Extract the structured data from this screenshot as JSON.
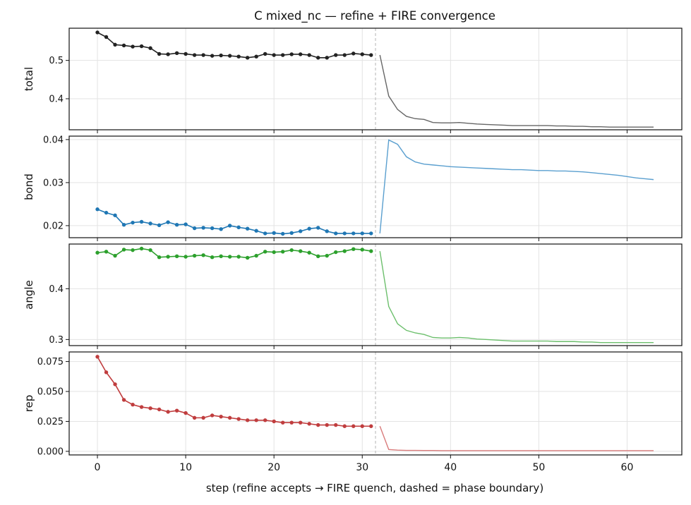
{
  "chart_data": {
    "type": "line",
    "title": "C mixed_nc — refine + FIRE convergence",
    "xlabel": "step  (refine accepts → FIRE quench, dashed = phase boundary)",
    "xlim": [
      -3.2,
      66.2
    ],
    "x_ticks": [
      0,
      10,
      20,
      30,
      40,
      50,
      60
    ],
    "phase_boundary_x": 31.5,
    "grid": true,
    "panels": [
      {
        "ylabel": "total",
        "ylim": [
          0.319,
          0.584
        ],
        "y_ticks": [
          0.4,
          0.5
        ],
        "y_tick_labels": [
          "0.4",
          "0.5"
        ],
        "refine_color": "#222222",
        "fire_color": "#666666",
        "refine": [
          0.573,
          0.561,
          0.541,
          0.539,
          0.536,
          0.537,
          0.532,
          0.517,
          0.516,
          0.519,
          0.517,
          0.514,
          0.514,
          0.512,
          0.513,
          0.512,
          0.51,
          0.507,
          0.51,
          0.517,
          0.514,
          0.514,
          0.516,
          0.516,
          0.514,
          0.507,
          0.507,
          0.514,
          0.514,
          0.518,
          0.516,
          0.514
        ],
        "fire": [
          0.514,
          0.407,
          0.372,
          0.354,
          0.348,
          0.346,
          0.338,
          0.337,
          0.337,
          0.338,
          0.336,
          0.334,
          0.333,
          0.332,
          0.331,
          0.33,
          0.33,
          0.33,
          0.33,
          0.33,
          0.329,
          0.329,
          0.328,
          0.328,
          0.327,
          0.327,
          0.326,
          0.326,
          0.326,
          0.326,
          0.326,
          0.326
        ]
      },
      {
        "ylabel": "bond",
        "ylim": [
          0.0172,
          0.0408
        ],
        "y_ticks": [
          0.02,
          0.03,
          0.04
        ],
        "y_tick_labels": [
          "0.02",
          "0.03",
          "0.04"
        ],
        "refine_color": "#1f77b4",
        "fire_color": "#5a9fcf",
        "refine": [
          0.0238,
          0.023,
          0.0224,
          0.0202,
          0.0207,
          0.0209,
          0.0205,
          0.0201,
          0.0208,
          0.0202,
          0.0203,
          0.0194,
          0.0195,
          0.0194,
          0.0192,
          0.02,
          0.0196,
          0.0193,
          0.0188,
          0.0182,
          0.0183,
          0.0181,
          0.0183,
          0.0187,
          0.0193,
          0.0195,
          0.0187,
          0.0182,
          0.0182,
          0.0182,
          0.0182,
          0.0182
        ],
        "fire": [
          0.0182,
          0.0399,
          0.0389,
          0.036,
          0.0348,
          0.0343,
          0.0341,
          0.0339,
          0.0337,
          0.0336,
          0.0335,
          0.0334,
          0.0333,
          0.0332,
          0.0331,
          0.033,
          0.033,
          0.0329,
          0.0328,
          0.0328,
          0.0327,
          0.0327,
          0.0326,
          0.0325,
          0.0323,
          0.0321,
          0.0319,
          0.0317,
          0.0314,
          0.0311,
          0.0309,
          0.0307
        ]
      },
      {
        "ylabel": "angle",
        "ylim": [
          0.288,
          0.488
        ],
        "y_ticks": [
          0.3,
          0.4
        ],
        "y_tick_labels": [
          "0.3",
          "0.4"
        ],
        "refine_color": "#2ca02c",
        "fire_color": "#6cbf6c",
        "refine": [
          0.471,
          0.473,
          0.465,
          0.477,
          0.476,
          0.479,
          0.476,
          0.462,
          0.463,
          0.464,
          0.463,
          0.465,
          0.466,
          0.462,
          0.464,
          0.463,
          0.463,
          0.461,
          0.465,
          0.473,
          0.472,
          0.473,
          0.476,
          0.474,
          0.471,
          0.464,
          0.465,
          0.472,
          0.474,
          0.478,
          0.477,
          0.474
        ],
        "fire": [
          0.474,
          0.365,
          0.331,
          0.318,
          0.313,
          0.31,
          0.304,
          0.303,
          0.303,
          0.304,
          0.303,
          0.301,
          0.3,
          0.299,
          0.298,
          0.297,
          0.297,
          0.297,
          0.297,
          0.297,
          0.296,
          0.296,
          0.296,
          0.295,
          0.295,
          0.294,
          0.294,
          0.294,
          0.294,
          0.294,
          0.294,
          0.294
        ]
      },
      {
        "ylabel": "rep",
        "ylim": [
          -0.003,
          0.083
        ],
        "y_ticks": [
          0,
          0.025,
          0.05,
          0.075
        ],
        "y_tick_labels": [
          "0.000",
          "0.025",
          "0.050",
          "0.075"
        ],
        "refine_color": "#c03d3e",
        "fire_color": "#d97b7b",
        "refine": [
          0.079,
          0.066,
          0.056,
          0.043,
          0.039,
          0.037,
          0.036,
          0.035,
          0.033,
          0.034,
          0.032,
          0.028,
          0.028,
          0.03,
          0.029,
          0.028,
          0.027,
          0.026,
          0.026,
          0.026,
          0.025,
          0.024,
          0.024,
          0.024,
          0.023,
          0.022,
          0.022,
          0.022,
          0.021,
          0.021,
          0.021,
          0.021
        ],
        "fire": [
          0.021,
          0.0015,
          0.001,
          0.0008,
          0.0008,
          0.0007,
          0.0007,
          0.0006,
          0.0006,
          0.0006,
          0.0006,
          0.0006,
          0.0006,
          0.0006,
          0.0006,
          0.0006,
          0.0006,
          0.0006,
          0.0006,
          0.0006,
          0.0006,
          0.0006,
          0.0006,
          0.0006,
          0.0006,
          0.0006,
          0.0006,
          0.0006,
          0.0006,
          0.0006,
          0.0006,
          0.0006
        ]
      }
    ]
  }
}
